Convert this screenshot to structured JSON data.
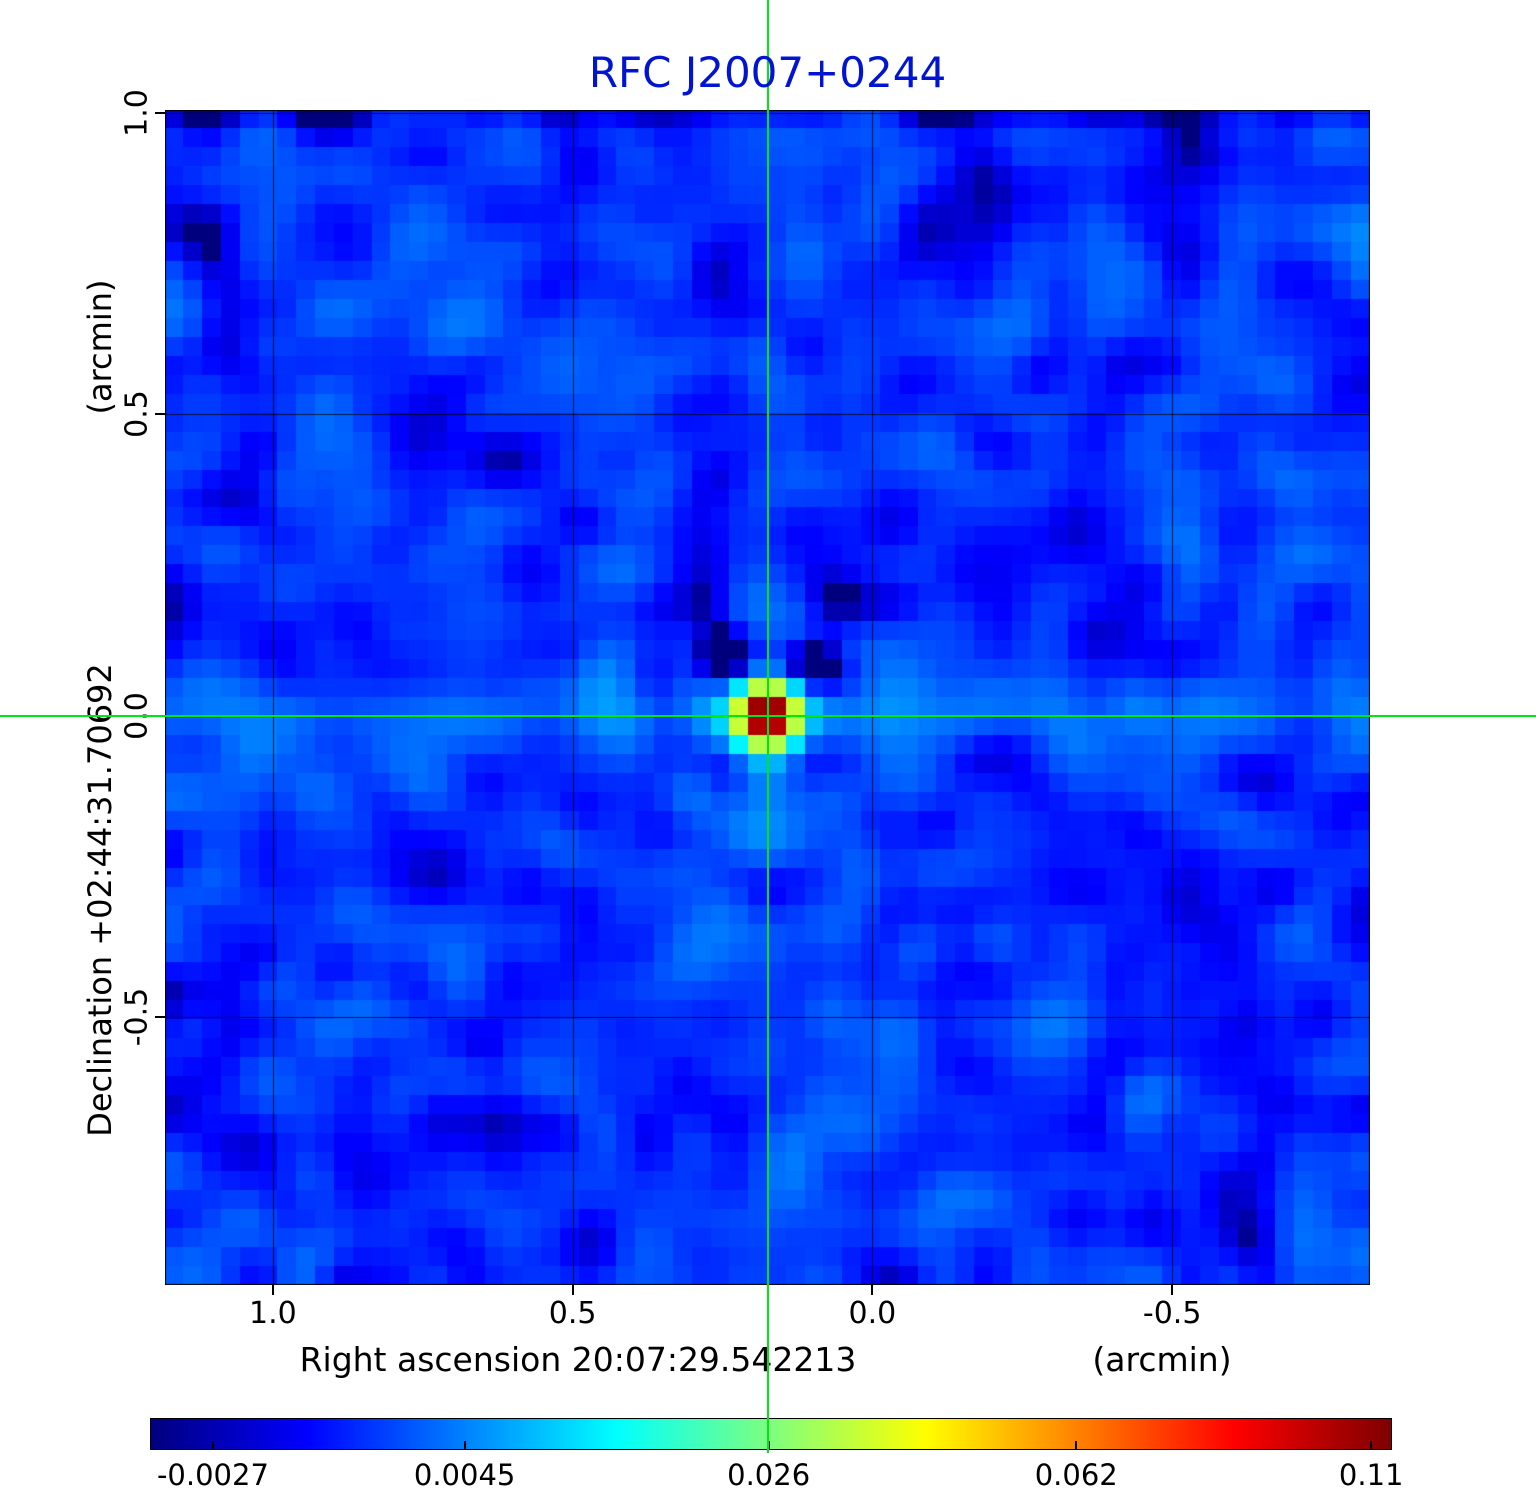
{
  "title": "RFC J2007+0244",
  "colors": {
    "title": "#0014d2",
    "crosshair": "#00e614",
    "axis_text": "#000000",
    "grid": "#000000",
    "map_background_blue": "#1a5ae0"
  },
  "axes": {
    "y_unit": "(arcmin)",
    "y_label": "Declination  +02:44:31.70692",
    "x_label": "Right ascension  20:07:29.542213",
    "x_unit": "(arcmin)",
    "x_ticks": [
      {
        "label": "1.0",
        "value": 1.0
      },
      {
        "label": "0.5",
        "value": 0.5
      },
      {
        "label": "0.0",
        "value": 0.0
      },
      {
        "label": "-0.5",
        "value": -0.5
      }
    ],
    "y_ticks": [
      {
        "label": "1.0",
        "value": 1.0
      },
      {
        "label": "0.5",
        "value": 0.5
      },
      {
        "label": "0.0",
        "value": 0.0
      },
      {
        "label": "-0.5",
        "value": -0.5
      }
    ]
  },
  "chart_data": {
    "type": "heatmap",
    "title": "RFC J2007+0244",
    "xlabel": "Right ascension  20:07:29.542213 (arcmin)",
    "ylabel": "Declination  +02:44:31.70692 (arcmin)",
    "colormap": "jet",
    "stretch": "sqrt",
    "value_min": -0.003,
    "value_max": 0.1135,
    "x_range_arcmin": [
      1.18,
      -0.83
    ],
    "y_range_arcmin": [
      1.005,
      -0.945
    ],
    "grid_lines_x_arcmin": [
      1.0,
      0.5,
      0.0,
      -0.5
    ],
    "grid_lines_y_arcmin": [
      1.0,
      0.5,
      0.0,
      -0.5
    ],
    "source_peak": {
      "x_arcmin": 0.175,
      "y_arcmin": 0.0,
      "peak_value": 0.11
    },
    "background_rms": 0.0012,
    "colorbar_ticks": [
      {
        "label": "-0.0027",
        "value": -0.0027
      },
      {
        "label": "0.0045",
        "value": 0.0045
      },
      {
        "label": "0.026",
        "value": 0.026
      },
      {
        "label": "0.062",
        "value": 0.062
      },
      {
        "label": "0.11",
        "value": 0.11
      }
    ],
    "render": {
      "nx": 64,
      "ny": 62,
      "seed": 42,
      "noise_sigma": 0.0012,
      "noise_mean": 0.0004,
      "top_row_offset": -0.0015,
      "source": {
        "amp": 0.118,
        "width": 0.85,
        "halo_amp": 0.01,
        "halo_width": 2.0
      },
      "sidelobes": [
        {
          "dx": -2.2,
          "dy": -3.2,
          "amp": -0.0075,
          "w": 1.1
        },
        {
          "dx": 2.6,
          "dy": -2.6,
          "amp": -0.007,
          "w": 1.1
        },
        {
          "dx": -3.2,
          "dy": -5.8,
          "amp": -0.004,
          "w": 1.2
        },
        {
          "dx": 3.8,
          "dy": -5.2,
          "amp": -0.0035,
          "w": 1.2
        },
        {
          "dx": -4.5,
          "dy": 1.5,
          "amp": -0.0022,
          "w": 1.2
        },
        {
          "dx": 4.2,
          "dy": 2.2,
          "amp": -0.0022,
          "w": 1.2
        }
      ],
      "h_band": {
        "amp": 0.003,
        "width": 1.4,
        "decay": 28,
        "floor": 0.0012
      },
      "v_band": {
        "amp": 0.0018,
        "width": 1.4,
        "decay": 18
      },
      "v_ripple": {
        "amp": 0.0022,
        "freq": 1.05,
        "decay": 14
      },
      "x_ripple": {
        "amp": 0.0028,
        "freq": 1.1,
        "decay": 16
      }
    }
  }
}
